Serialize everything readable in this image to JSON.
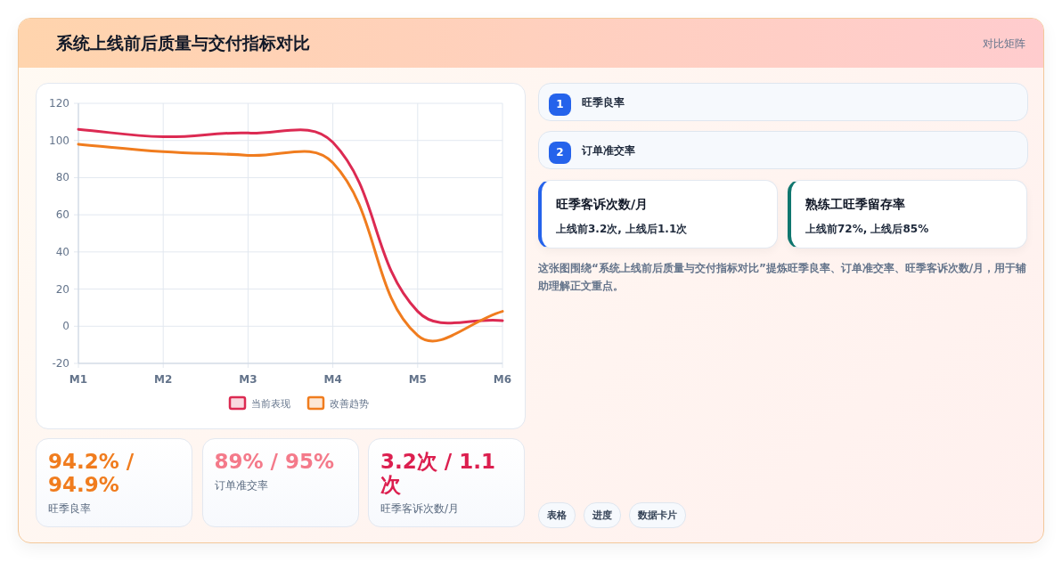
{
  "chart_data": [
    {
      "type": "other",
      "title": "系统上线前后质量与交付指标对比",
      "annotations": [
        "对比矩阵"
      ]
    },
    {
      "type": "line",
      "categories": [
        "M1",
        "M2",
        "M3",
        "M4",
        "M5",
        "M6"
      ],
      "series": [
        {
          "name": "当前表现",
          "color": "#dc2a52",
          "values": [
            106,
            102,
            104,
            99,
            8,
            3
          ]
        },
        {
          "name": "改善趋势",
          "color": "#f07c1e",
          "values": [
            98,
            94,
            92,
            88,
            -5,
            8
          ]
        }
      ],
      "ylim": [
        -20,
        120
      ],
      "yticks": [
        -20,
        0,
        20,
        40,
        60,
        80,
        100,
        120
      ],
      "grid": true,
      "legend": "bottom",
      "marker": "none",
      "line_style": "solid"
    },
    {
      "type": "other",
      "annotations": [
        "94.2% / 94.9%",
        "旺季良率",
        "89% / 95%",
        "订单准交率",
        "3.2次 / 1.1次",
        "旺季客诉次数/月"
      ],
      "colors": [
        "#f07c1e",
        "#f47a8a",
        "#dc1f4f"
      ]
    },
    {
      "type": "other",
      "annotations": [
        "1",
        "旺季良率",
        "2",
        "订单准交率"
      ],
      "colors": [
        "#2563eb",
        "#2563eb"
      ]
    },
    {
      "type": "other",
      "annotations": [
        "旺季客诉次数/月",
        "上线前3.2次, 上线后1.1次",
        "熟练工旺季留存率",
        "上线前72%, 上线后85%"
      ],
      "colors": [
        "#2563eb",
        "#0f766e"
      ]
    },
    {
      "type": "other",
      "annotations": [
        "这张图围绕“系统上线前后质量与交付指标对比”提炼旺季良率、订单准交率、旺季客诉次数/月，用于辅助理解正文重点。"
      ]
    },
    {
      "type": "other",
      "annotations": [
        "表格",
        "进度",
        "数据卡片"
      ]
    }
  ]
}
